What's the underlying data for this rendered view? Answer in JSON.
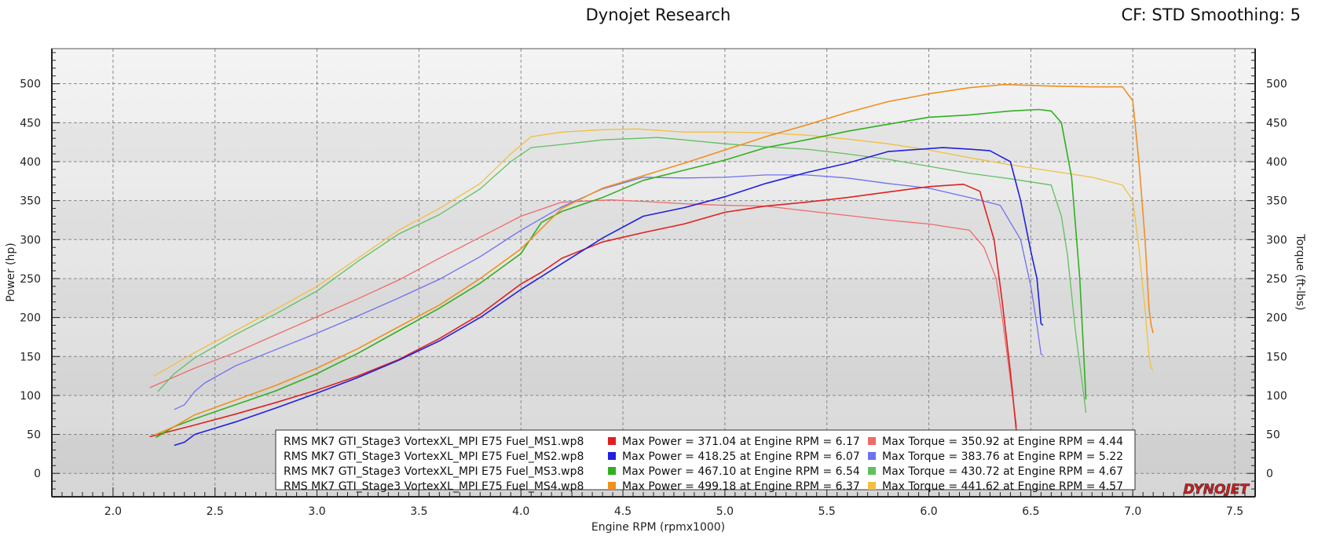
{
  "chart_data": {
    "type": "line",
    "title": "Dynojet Research",
    "subtitle": "CF: STD Smoothing: 5",
    "xlabel": "Engine RPM (rpmx1000)",
    "ylabel_left": "Power (hp)",
    "ylabel_right": "Torque (ft-lbs)",
    "xlim": [
      1.7,
      7.6
    ],
    "ylim": [
      -30,
      545
    ],
    "x_ticks": [
      "2.0",
      "2.5",
      "3.0",
      "3.5",
      "4.0",
      "4.5",
      "5.0",
      "5.5",
      "6.0",
      "6.5",
      "7.0",
      "7.5"
    ],
    "y_ticks": [
      "0",
      "50",
      "100",
      "150",
      "200",
      "250",
      "300",
      "350",
      "400",
      "450",
      "500"
    ],
    "grid": true,
    "legend_position": "bottom-center",
    "brand": "DYNOJET",
    "series": [
      {
        "name": "RMS MK7 GTI_Stage3 VortexXL_MPI E75 Fuel_MS1.wp8",
        "kind": "power",
        "color": "#e02020",
        "x": [
          2.18,
          2.25,
          2.4,
          2.6,
          2.8,
          3.0,
          3.2,
          3.4,
          3.6,
          3.8,
          4.0,
          4.1,
          4.2,
          4.4,
          4.6,
          4.8,
          5.0,
          5.2,
          5.4,
          5.6,
          5.8,
          6.0,
          6.17,
          6.25,
          6.32,
          6.36,
          6.4,
          6.43
        ],
        "y": [
          47,
          52,
          62,
          76,
          91,
          107,
          125,
          146,
          173,
          204,
          243,
          258,
          276,
          297,
          309,
          320,
          335,
          343,
          348,
          354,
          361,
          368,
          371,
          362,
          300,
          220,
          130,
          52
        ]
      },
      {
        "name": "RMS MK7 GTI_Stage3 VortexXL_MPI E75 Fuel_MS2.wp8",
        "kind": "power",
        "color": "#2020e0",
        "x": [
          2.3,
          2.35,
          2.4,
          2.6,
          2.8,
          3.0,
          3.2,
          3.4,
          3.6,
          3.8,
          4.0,
          4.2,
          4.4,
          4.6,
          4.8,
          5.0,
          5.2,
          5.4,
          5.6,
          5.8,
          6.07,
          6.2,
          6.3,
          6.4,
          6.45,
          6.5,
          6.53,
          6.55,
          6.56
        ],
        "y": [
          36,
          40,
          50,
          66,
          84,
          103,
          123,
          145,
          170,
          200,
          236,
          269,
          302,
          330,
          341,
          355,
          372,
          386,
          398,
          413,
          418,
          416,
          414,
          400,
          350,
          285,
          250,
          192,
          190
        ]
      },
      {
        "name": "RMS MK7 GTI_Stage3 VortexXL_MPI E75 Fuel_MS3.wp8",
        "kind": "power",
        "color": "#30b020",
        "x": [
          2.21,
          2.3,
          2.4,
          2.6,
          2.8,
          3.0,
          3.2,
          3.4,
          3.6,
          3.8,
          4.0,
          4.1,
          4.2,
          4.4,
          4.6,
          4.8,
          5.0,
          5.2,
          5.4,
          5.6,
          5.8,
          6.0,
          6.2,
          6.4,
          6.54,
          6.6,
          6.65,
          6.7,
          6.74,
          6.76,
          6.77
        ],
        "y": [
          46,
          60,
          70,
          88,
          106,
          128,
          154,
          183,
          212,
          244,
          282,
          322,
          336,
          354,
          376,
          389,
          402,
          418,
          428,
          439,
          448,
          457,
          460,
          465,
          467,
          465,
          450,
          380,
          250,
          150,
          95
        ]
      },
      {
        "name": "RMS MK7 GTI_Stage3 VortexXL_MPI E75 Fuel_MS4.wp8",
        "kind": "power",
        "color": "#f09020",
        "x": [
          2.21,
          2.3,
          2.4,
          2.6,
          2.8,
          3.0,
          3.2,
          3.4,
          3.6,
          3.8,
          4.0,
          4.2,
          4.4,
          4.6,
          4.8,
          5.0,
          5.2,
          5.4,
          5.6,
          5.8,
          6.0,
          6.2,
          6.37,
          6.6,
          6.8,
          6.95,
          7.0,
          7.03,
          7.06,
          7.08,
          7.09,
          7.1
        ],
        "y": [
          50,
          60,
          75,
          94,
          113,
          135,
          160,
          188,
          216,
          250,
          288,
          340,
          366,
          382,
          398,
          415,
          432,
          447,
          463,
          477,
          487,
          495,
          499,
          497,
          496,
          496,
          478,
          400,
          300,
          210,
          190,
          180
        ]
      },
      {
        "name": "RMS MK7 GTI_Stage3 VortexXL_MPI E75 Fuel_MS1.wp8",
        "kind": "torque",
        "color": "#f06a6a",
        "x": [
          2.18,
          2.4,
          2.6,
          2.8,
          3.0,
          3.2,
          3.4,
          3.6,
          3.8,
          4.0,
          4.2,
          4.44,
          4.6,
          4.8,
          5.0,
          5.2,
          5.4,
          5.6,
          5.8,
          6.0,
          6.2,
          6.27,
          6.33,
          6.36,
          6.4,
          6.43
        ],
        "y": [
          110,
          135,
          155,
          178,
          201,
          224,
          248,
          276,
          303,
          330,
          348,
          351,
          349,
          346,
          344,
          343,
          337,
          331,
          325,
          320,
          312,
          290,
          250,
          200,
          120,
          60
        ]
      },
      {
        "name": "RMS MK7 GTI_Stage3 VortexXL_MPI E75 Fuel_MS2.wp8",
        "kind": "torque",
        "color": "#7070f0",
        "x": [
          2.3,
          2.35,
          2.4,
          2.45,
          2.6,
          2.8,
          3.0,
          3.2,
          3.4,
          3.6,
          3.8,
          4.0,
          4.2,
          4.4,
          4.6,
          4.8,
          5.0,
          5.2,
          5.4,
          5.6,
          5.8,
          6.0,
          6.2,
          6.35,
          6.45,
          6.5,
          6.53,
          6.55,
          6.56
        ],
        "y": [
          82,
          88,
          105,
          116,
          138,
          159,
          180,
          202,
          225,
          249,
          278,
          312,
          342,
          365,
          380,
          379,
          380,
          383,
          383,
          379,
          372,
          366,
          354,
          344,
          300,
          240,
          190,
          153,
          152
        ]
      },
      {
        "name": "RMS MK7 GTI_Stage3 VortexXL_MPI E75 Fuel_MS3.wp8",
        "kind": "torque",
        "color": "#60c060",
        "x": [
          2.22,
          2.3,
          2.4,
          2.6,
          2.8,
          3.0,
          3.2,
          3.4,
          3.6,
          3.8,
          3.95,
          4.05,
          4.2,
          4.4,
          4.67,
          4.8,
          5.0,
          5.2,
          5.4,
          5.6,
          5.8,
          6.0,
          6.2,
          6.4,
          6.6,
          6.65,
          6.68,
          6.72,
          6.76,
          6.77
        ],
        "y": [
          105,
          128,
          148,
          178,
          205,
          234,
          272,
          307,
          332,
          365,
          400,
          418,
          422,
          428,
          431,
          428,
          423,
          419,
          416,
          410,
          403,
          394,
          385,
          378,
          370,
          330,
          280,
          180,
          100,
          78
        ]
      },
      {
        "name": "RMS MK7 GTI_Stage3 VortexXL_MPI E75 Fuel_MS4.wp8",
        "kind": "torque",
        "color": "#f0c040",
        "x": [
          2.2,
          2.3,
          2.4,
          2.6,
          2.8,
          3.0,
          3.2,
          3.4,
          3.6,
          3.8,
          3.95,
          4.05,
          4.2,
          4.4,
          4.57,
          4.8,
          5.0,
          5.2,
          5.4,
          5.6,
          5.8,
          6.0,
          6.2,
          6.4,
          6.6,
          6.8,
          6.95,
          7.0,
          7.03,
          7.06,
          7.08,
          7.09,
          7.1
        ],
        "y": [
          125,
          140,
          155,
          183,
          211,
          240,
          276,
          312,
          340,
          372,
          410,
          432,
          438,
          441,
          442,
          438,
          438,
          437,
          434,
          429,
          423,
          415,
          405,
          396,
          388,
          380,
          370,
          350,
          290,
          210,
          150,
          135,
          132
        ]
      }
    ],
    "legend": [
      {
        "file": "RMS MK7 GTI_Stage3 VortexXL_MPI E75 Fuel_MS1.wp8",
        "power_color": "#e02020",
        "power_text": "Max Power = 371.04 at Engine RPM = 6.17",
        "torque_color": "#f06a6a",
        "torque_text": "Max Torque = 350.92 at Engine RPM = 4.44"
      },
      {
        "file": "RMS MK7 GTI_Stage3 VortexXL_MPI E75 Fuel_MS2.wp8",
        "power_color": "#2020e0",
        "power_text": "Max Power = 418.25 at Engine RPM = 6.07",
        "torque_color": "#7070f0",
        "torque_text": "Max Torque = 383.76 at Engine RPM = 5.22"
      },
      {
        "file": "RMS MK7 GTI_Stage3 VortexXL_MPI E75 Fuel_MS3.wp8",
        "power_color": "#30b020",
        "power_text": "Max Power = 467.10 at Engine RPM = 6.54",
        "torque_color": "#60c060",
        "torque_text": "Max Torque = 430.72 at Engine RPM = 4.67"
      },
      {
        "file": "RMS MK7 GTI_Stage3 VortexXL_MPI E75 Fuel_MS4.wp8",
        "power_color": "#f09020",
        "power_text": "Max Power = 499.18 at Engine RPM = 6.37",
        "torque_color": "#f0c040",
        "torque_text": "Max Torque = 441.62 at Engine RPM = 4.57"
      }
    ]
  }
}
